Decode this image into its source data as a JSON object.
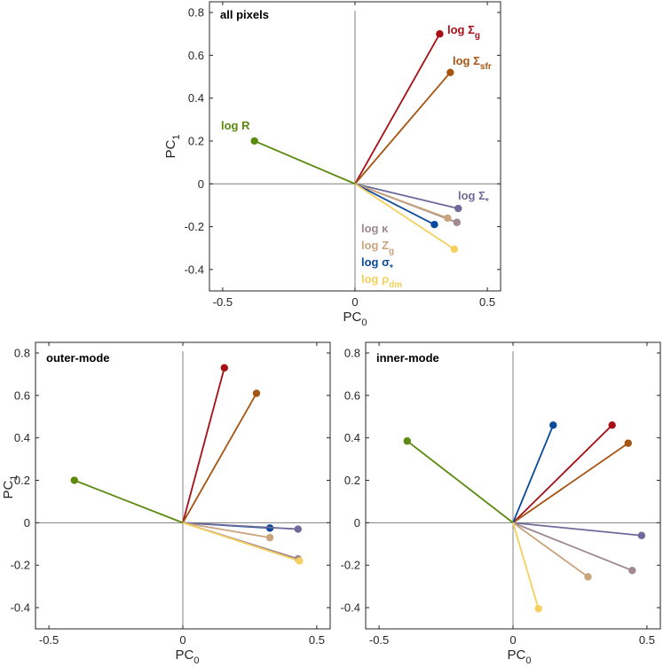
{
  "colors": {
    "log_Sigma_g": "#a50f15",
    "log_Sigma_sfr": "#a65513",
    "log_R": "#5b8a0e",
    "log_Sigma_star": "#6e6a9b",
    "log_kappa": "#a08a90",
    "log_Z_g": "#c9a57e",
    "log_sigma_star": "#0a4a9c",
    "log_rho_dm": "#f5d05e",
    "axis": "#262626",
    "zeroline": "#7f7f7f"
  },
  "chart_data": [
    {
      "type": "scatter",
      "title": "all pixels",
      "xlabel": "PC",
      "xlabel_sub": "0",
      "ylabel": "PC",
      "ylabel_sub": "1",
      "xlim": [
        -0.55,
        0.55
      ],
      "ylim": [
        -0.5,
        0.85
      ],
      "xticks": [
        -0.5,
        0,
        0.5
      ],
      "xtick_labels": [
        "-0.5",
        "0",
        "0.5"
      ],
      "yticks": [
        -0.4,
        -0.2,
        0,
        0.2,
        0.4,
        0.6,
        0.8
      ],
      "ytick_labels": [
        "-0.4",
        "-0.2",
        "0",
        "0.2",
        "0.4",
        "0.6",
        "0.8"
      ],
      "vectors": [
        {
          "key": "log_Sigma_g",
          "x": 0.32,
          "y": 0.7
        },
        {
          "key": "log_Sigma_sfr",
          "x": 0.36,
          "y": 0.52
        },
        {
          "key": "log_R",
          "x": -0.38,
          "y": 0.2
        },
        {
          "key": "log_Sigma_star",
          "x": 0.39,
          "y": -0.115
        },
        {
          "key": "log_kappa",
          "x": 0.385,
          "y": -0.18
        },
        {
          "key": "log_Z_g",
          "x": 0.35,
          "y": -0.16
        },
        {
          "key": "log_sigma_star",
          "x": 0.3,
          "y": -0.19
        },
        {
          "key": "log_rho_dm",
          "x": 0.375,
          "y": -0.305
        }
      ],
      "labels": [
        {
          "key": "log_Sigma_g",
          "text": "log Σ",
          "sub": "g"
        },
        {
          "key": "log_Sigma_sfr",
          "text": "log Σ",
          "sub": "sfr"
        },
        {
          "key": "log_R",
          "text": "log R",
          "sub": ""
        },
        {
          "key": "log_Sigma_star",
          "text": "log Σ",
          "sub": "*"
        },
        {
          "key": "log_kappa",
          "text": "log κ",
          "sub": ""
        },
        {
          "key": "log_Z_g",
          "text": "log Z",
          "sub": "g"
        },
        {
          "key": "log_sigma_star",
          "text": "log σ",
          "sub": "*"
        },
        {
          "key": "log_rho_dm",
          "text": "log ρ",
          "sub": "dm"
        }
      ]
    },
    {
      "type": "scatter",
      "title": "outer-mode",
      "xlabel": "PC",
      "xlabel_sub": "0",
      "ylabel": "PC",
      "ylabel_sub": "1",
      "xlim": [
        -0.55,
        0.55
      ],
      "ylim": [
        -0.5,
        0.85
      ],
      "xticks": [
        -0.5,
        0,
        0.5
      ],
      "xtick_labels": [
        "-0.5",
        "0",
        "0.5"
      ],
      "yticks": [
        -0.4,
        -0.2,
        0,
        0.2,
        0.4,
        0.6,
        0.8
      ],
      "ytick_labels": [
        "-0.4",
        "-0.2",
        "0",
        "0.2",
        "0.4",
        "0.6",
        "0.8"
      ],
      "vectors": [
        {
          "key": "log_Sigma_g",
          "x": 0.155,
          "y": 0.73
        },
        {
          "key": "log_Sigma_sfr",
          "x": 0.275,
          "y": 0.61
        },
        {
          "key": "log_R",
          "x": -0.405,
          "y": 0.2
        },
        {
          "key": "log_sigma_star",
          "x": 0.325,
          "y": -0.025
        },
        {
          "key": "log_Sigma_star",
          "x": 0.43,
          "y": -0.03
        },
        {
          "key": "log_Z_g",
          "x": 0.325,
          "y": -0.07
        },
        {
          "key": "log_kappa",
          "x": 0.43,
          "y": -0.17
        },
        {
          "key": "log_rho_dm",
          "x": 0.435,
          "y": -0.18
        }
      ]
    },
    {
      "type": "scatter",
      "title": "inner-mode",
      "xlabel": "PC",
      "xlabel_sub": "0",
      "ylabel": "",
      "ylabel_sub": "",
      "xlim": [
        -0.55,
        0.55
      ],
      "ylim": [
        -0.5,
        0.85
      ],
      "xticks": [
        -0.5,
        0,
        0.5
      ],
      "xtick_labels": [
        "-0.5",
        "0",
        "0.5"
      ],
      "yticks": [
        -0.4,
        -0.2,
        0,
        0.2,
        0.4,
        0.6,
        0.8
      ],
      "ytick_labels": [
        "-0.4",
        "-0.2",
        "0",
        "0.2",
        "0.4",
        "0.6",
        "0.8"
      ],
      "vectors": [
        {
          "key": "log_Sigma_g",
          "x": 0.37,
          "y": 0.46
        },
        {
          "key": "log_Sigma_sfr",
          "x": 0.43,
          "y": 0.375
        },
        {
          "key": "log_sigma_star",
          "x": 0.15,
          "y": 0.46
        },
        {
          "key": "log_R",
          "x": -0.395,
          "y": 0.385
        },
        {
          "key": "log_Sigma_star",
          "x": 0.48,
          "y": -0.06
        },
        {
          "key": "log_kappa",
          "x": 0.445,
          "y": -0.225
        },
        {
          "key": "log_Z_g",
          "x": 0.28,
          "y": -0.255
        },
        {
          "key": "log_rho_dm",
          "x": 0.095,
          "y": -0.405
        }
      ]
    }
  ]
}
